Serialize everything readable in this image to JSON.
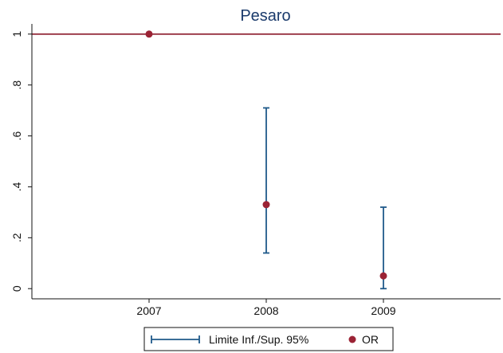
{
  "chart_data": {
    "type": "scatter",
    "title": "Pesaro",
    "xlabel": "",
    "ylabel": "",
    "x_ticks": [
      "2007",
      "2008",
      "2009"
    ],
    "y_ticks": [
      "0",
      ".2",
      ".4",
      ".6",
      ".8",
      "1"
    ],
    "xlim": [
      2006,
      2010
    ],
    "ylim": [
      -0.04,
      1.04
    ],
    "reference_line": {
      "y": 1,
      "color": "#8b1a2b"
    },
    "series": [
      {
        "name": "Limite Inf./Sup. 95%",
        "kind": "errorbar",
        "color": "#1f5a8a",
        "points": [
          {
            "x": 2008,
            "low": 0.14,
            "high": 0.71
          },
          {
            "x": 2009,
            "low": 0.0,
            "high": 0.32
          }
        ]
      },
      {
        "name": "OR",
        "kind": "scatter",
        "color": "#9b2335",
        "points": [
          {
            "x": 2007,
            "y": 1.0
          },
          {
            "x": 2008,
            "y": 0.33
          },
          {
            "x": 2009,
            "y": 0.05
          }
        ]
      }
    ],
    "legend_position": "bottom",
    "grid": false
  }
}
